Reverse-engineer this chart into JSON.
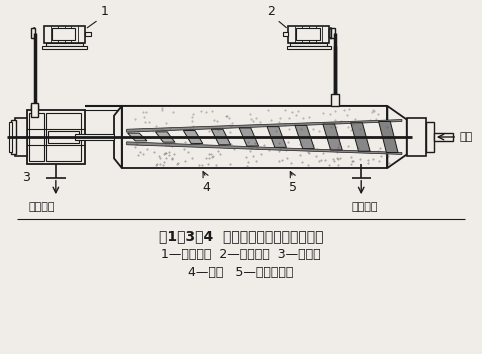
{
  "title_line1": "图1－3－4  卧式螺旋离心沉降机示意图",
  "caption_line2": "1—辅电动机  2—主电动机  3—差速器",
  "caption_line3": "4—转鼓   5—螺旋排料器",
  "label_1": "1",
  "label_2": "2",
  "label_3": "3",
  "label_4": "4",
  "label_5": "5",
  "label_jinliao": "进料",
  "label_chenzhachukou": "沉渣出口",
  "label_qingyechukou": "清液出口",
  "bg_color": "#f0ede8",
  "line_color": "#1a1a1a",
  "fig_width": 4.82,
  "fig_height": 3.54,
  "dpi": 100
}
